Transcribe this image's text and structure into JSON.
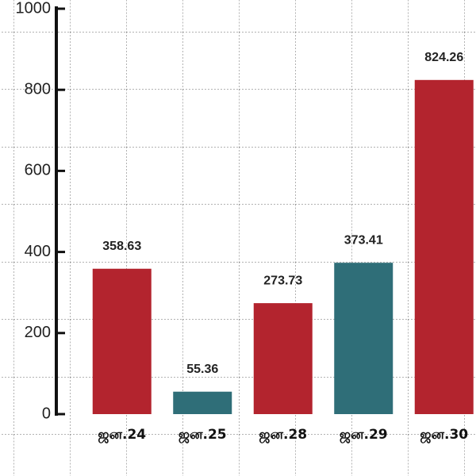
{
  "chart_data": {
    "type": "bar",
    "categories": [
      "ஜன.24",
      "ஜன.25",
      "ஜன.28",
      "ஜன.29",
      "ஜன.30"
    ],
    "values": [
      358.63,
      55.36,
      273.73,
      373.41,
      824.26
    ],
    "colors": [
      "#b3242e",
      "#2f6e78",
      "#b3242e",
      "#2f6e78",
      "#b3242e"
    ],
    "ylim": [
      0,
      1000
    ],
    "yticks": [
      0,
      200,
      400,
      600,
      800,
      1000
    ]
  }
}
